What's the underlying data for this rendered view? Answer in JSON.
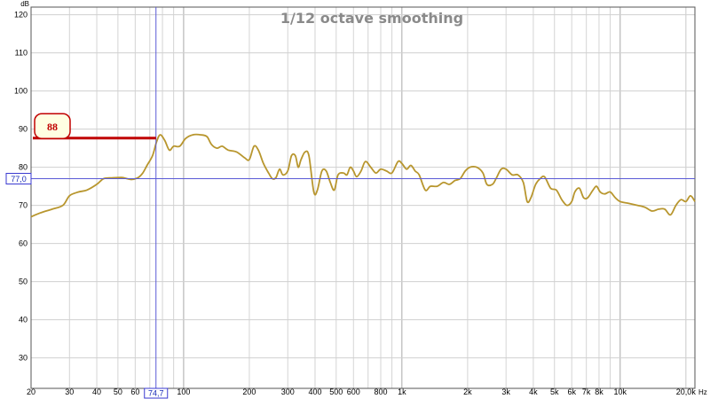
{
  "chart_data": {
    "type": "line",
    "title": "1/12 octave smoothing",
    "y_unit": "dB",
    "x_unit": "Hz",
    "x_scale": "log",
    "ylim": [
      22,
      122
    ],
    "xlim": [
      20,
      22000
    ],
    "grid": true,
    "y_ticks": [
      30,
      40,
      50,
      60,
      70,
      80,
      90,
      100,
      110,
      120
    ],
    "x_ticks": [
      {
        "v": 20,
        "label": "20"
      },
      {
        "v": 30,
        "label": "30"
      },
      {
        "v": 40,
        "label": "40"
      },
      {
        "v": 50,
        "label": "50"
      },
      {
        "v": 60,
        "label": "60"
      },
      {
        "v": 100,
        "label": "100"
      },
      {
        "v": 200,
        "label": "200"
      },
      {
        "v": 300,
        "label": "300"
      },
      {
        "v": 400,
        "label": "400"
      },
      {
        "v": 500,
        "label": "500"
      },
      {
        "v": 600,
        "label": "600"
      },
      {
        "v": 800,
        "label": "800"
      },
      {
        "v": 1000,
        "label": "1k"
      },
      {
        "v": 2000,
        "label": "2k"
      },
      {
        "v": 3000,
        "label": "3k"
      },
      {
        "v": 4000,
        "label": "4k"
      },
      {
        "v": 5000,
        "label": "5k"
      },
      {
        "v": 6000,
        "label": "6k"
      },
      {
        "v": 7000,
        "label": "7k"
      },
      {
        "v": 8000,
        "label": "8k"
      },
      {
        "v": 10000,
        "label": "10k"
      },
      {
        "v": 20000,
        "label": "20,0k"
      }
    ],
    "cursor": {
      "x": 74.7,
      "x_label": "74,7",
      "y": 77.0,
      "y_label": "77,0"
    },
    "annotation": {
      "label": "88",
      "value": 88
    },
    "series": [
      {
        "color": "#b8962e",
        "points": [
          [
            20,
            67
          ],
          [
            22,
            68
          ],
          [
            25,
            69
          ],
          [
            28,
            70
          ],
          [
            30,
            72.5
          ],
          [
            33,
            73.5
          ],
          [
            36,
            74
          ],
          [
            40,
            75.5
          ],
          [
            43,
            77
          ],
          [
            47,
            77.2
          ],
          [
            52,
            77.3
          ],
          [
            55,
            77
          ],
          [
            58,
            76.8
          ],
          [
            62,
            77.3
          ],
          [
            65,
            78.5
          ],
          [
            68,
            80.5
          ],
          [
            72,
            83
          ],
          [
            75,
            86.5
          ],
          [
            78,
            88.5
          ],
          [
            82,
            87
          ],
          [
            86,
            84.5
          ],
          [
            90,
            85.5
          ],
          [
            96,
            85.5
          ],
          [
            102,
            87.5
          ],
          [
            110,
            88.5
          ],
          [
            120,
            88.5
          ],
          [
            128,
            88
          ],
          [
            134,
            86
          ],
          [
            142,
            85
          ],
          [
            150,
            85.5
          ],
          [
            160,
            84.5
          ],
          [
            175,
            84
          ],
          [
            190,
            82.5
          ],
          [
            200,
            82
          ],
          [
            210,
            85.5
          ],
          [
            220,
            84.5
          ],
          [
            232,
            81
          ],
          [
            245,
            78.5
          ],
          [
            255,
            77
          ],
          [
            265,
            77.3
          ],
          [
            275,
            79.5
          ],
          [
            285,
            78
          ],
          [
            300,
            79
          ],
          [
            312,
            83
          ],
          [
            325,
            83
          ],
          [
            335,
            80
          ],
          [
            345,
            82
          ],
          [
            360,
            84
          ],
          [
            375,
            83
          ],
          [
            395,
            73.5
          ],
          [
            410,
            74
          ],
          [
            430,
            79
          ],
          [
            450,
            79
          ],
          [
            470,
            76
          ],
          [
            490,
            74
          ],
          [
            510,
            78
          ],
          [
            540,
            78.5
          ],
          [
            560,
            78
          ],
          [
            580,
            80
          ],
          [
            600,
            79
          ],
          [
            620,
            77.5
          ],
          [
            650,
            79
          ],
          [
            680,
            81.5
          ],
          [
            720,
            80
          ],
          [
            760,
            78.5
          ],
          [
            800,
            79.5
          ],
          [
            850,
            79
          ],
          [
            900,
            78.5
          ],
          [
            960,
            81.5
          ],
          [
            1000,
            81
          ],
          [
            1050,
            79.5
          ],
          [
            1100,
            80.5
          ],
          [
            1150,
            79
          ],
          [
            1200,
            78
          ],
          [
            1280,
            74
          ],
          [
            1350,
            75
          ],
          [
            1450,
            75
          ],
          [
            1550,
            76
          ],
          [
            1650,
            75.5
          ],
          [
            1750,
            76.5
          ],
          [
            1850,
            77
          ],
          [
            1950,
            79
          ],
          [
            2050,
            80
          ],
          [
            2200,
            80
          ],
          [
            2350,
            78.5
          ],
          [
            2450,
            75.5
          ],
          [
            2600,
            75.5
          ],
          [
            2700,
            77
          ],
          [
            2850,
            79.5
          ],
          [
            3000,
            79.5
          ],
          [
            3200,
            78
          ],
          [
            3400,
            78
          ],
          [
            3600,
            76
          ],
          [
            3750,
            71
          ],
          [
            3900,
            72
          ],
          [
            4100,
            75.5
          ],
          [
            4300,
            77
          ],
          [
            4500,
            77.5
          ],
          [
            4800,
            74.5
          ],
          [
            5100,
            74
          ],
          [
            5400,
            71.5
          ],
          [
            5700,
            70
          ],
          [
            6000,
            71
          ],
          [
            6200,
            73.5
          ],
          [
            6500,
            74.5
          ],
          [
            6800,
            72
          ],
          [
            7100,
            72
          ],
          [
            7500,
            74
          ],
          [
            7800,
            75
          ],
          [
            8100,
            73.5
          ],
          [
            8500,
            73
          ],
          [
            9000,
            73.5
          ],
          [
            9500,
            72
          ],
          [
            10000,
            71
          ],
          [
            11000,
            70.5
          ],
          [
            12000,
            70
          ],
          [
            13000,
            69.5
          ],
          [
            14000,
            68.5
          ],
          [
            15000,
            69
          ],
          [
            16000,
            69
          ],
          [
            17000,
            67.5
          ],
          [
            18000,
            70
          ],
          [
            19000,
            71.5
          ],
          [
            20000,
            71
          ],
          [
            21000,
            72.5
          ],
          [
            22000,
            71
          ]
        ]
      }
    ]
  }
}
